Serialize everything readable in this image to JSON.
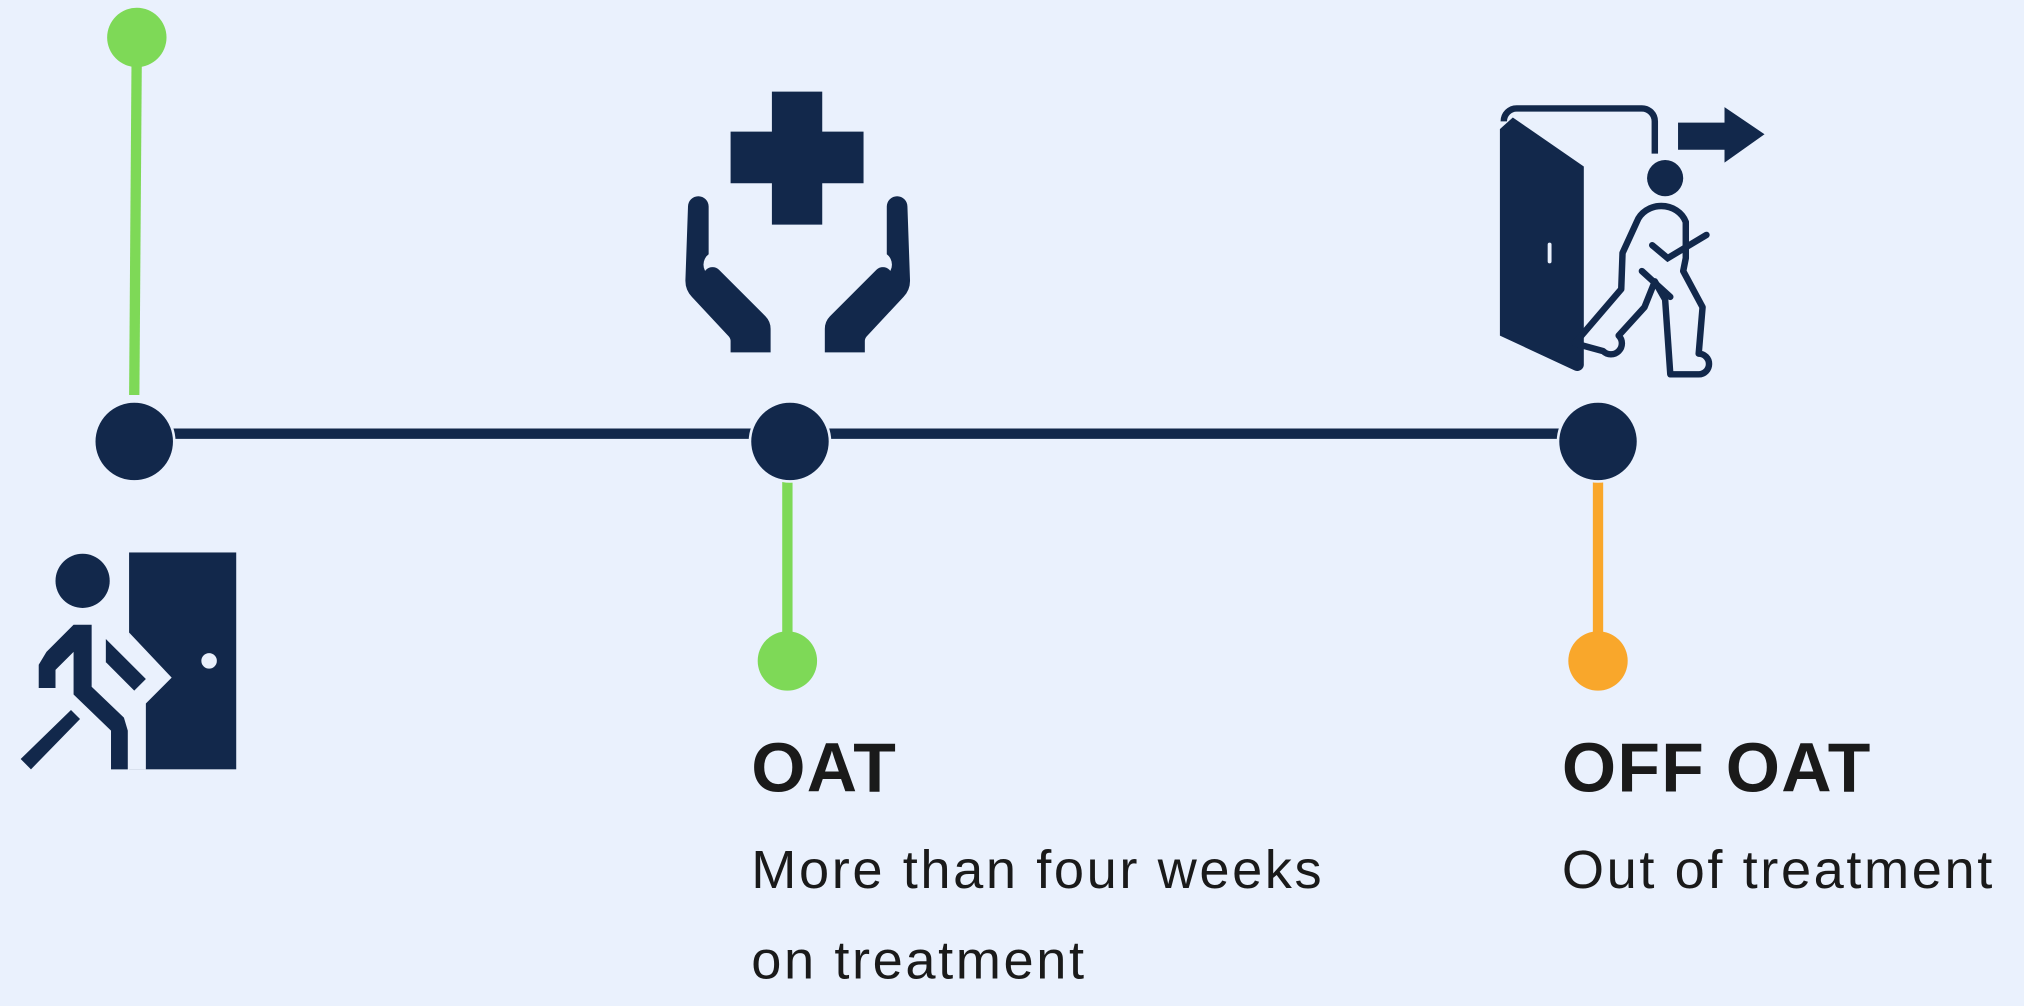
{
  "stages": [
    {
      "title": "OAT",
      "description": "More than four weeks on treatment"
    },
    {
      "title": "OFF OAT",
      "description": "Out of treatment"
    }
  ]
}
